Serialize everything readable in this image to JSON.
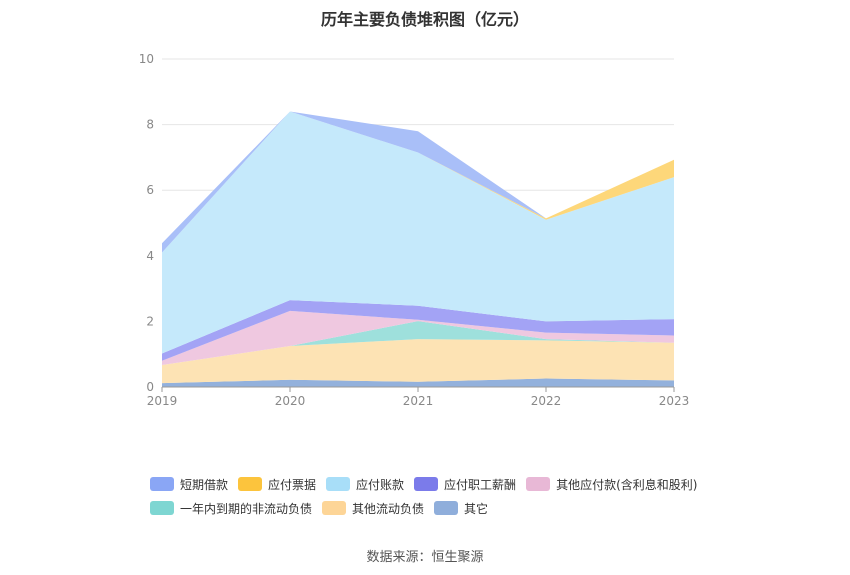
{
  "source_text": "数据来源：恒生聚源",
  "chart_data": {
    "type": "area",
    "stacked": true,
    "title": "历年主要负债堆积图（亿元）",
    "xlabel": "",
    "ylabel": "",
    "categories": [
      "2019",
      "2020",
      "2021",
      "2022",
      "2023"
    ],
    "ylim": [
      0,
      10
    ],
    "yticks": [
      0,
      2,
      4,
      6,
      8,
      10
    ],
    "grid": true,
    "legend_position": "bottom",
    "series": [
      {
        "name": "其它",
        "color": "#93b1dc",
        "values": [
          0.12,
          0.22,
          0.16,
          0.26,
          0.2
        ]
      },
      {
        "name": "其他流动负债",
        "color": "#fde3b4",
        "values": [
          0.55,
          1.03,
          1.3,
          1.16,
          1.15
        ]
      },
      {
        "name": "一年内到期的非流动负债",
        "color": "#9ee0dc",
        "values": [
          0.0,
          0.0,
          0.55,
          0.04,
          0.0
        ]
      },
      {
        "name": "其他应付款(含利息和股利)",
        "color": "#efc8e0",
        "values": [
          0.13,
          1.07,
          0.04,
          0.2,
          0.22
        ]
      },
      {
        "name": "应付职工薪酬",
        "color": "#a3a3f5",
        "values": [
          0.22,
          0.33,
          0.43,
          0.34,
          0.5
        ]
      },
      {
        "name": "应付账款",
        "color": "#c5e9fb",
        "values": [
          3.08,
          5.75,
          4.67,
          3.1,
          4.33
        ]
      },
      {
        "name": "应付票据",
        "color": "#fdd77a",
        "values": [
          0.0,
          0.0,
          0.0,
          0.04,
          0.53
        ]
      },
      {
        "name": "短期借款",
        "color": "#a9bff8",
        "values": [
          0.28,
          0.0,
          0.65,
          0.0,
          0.0
        ]
      }
    ],
    "legend": [
      {
        "name": "短期借款",
        "color": "#8aa6f5"
      },
      {
        "name": "应付票据",
        "color": "#fcc43d"
      },
      {
        "name": "应付账款",
        "color": "#a8def8"
      },
      {
        "name": "应付职工薪酬",
        "color": "#7b7bea"
      },
      {
        "name": "其他应付款(含利息和股利)",
        "color": "#e8b8d6"
      },
      {
        "name": "一年内到期的非流动负债",
        "color": "#7ed6d2"
      },
      {
        "name": "其他流动负债",
        "color": "#fdd597"
      },
      {
        "name": "其它",
        "color": "#8faedb"
      }
    ]
  }
}
